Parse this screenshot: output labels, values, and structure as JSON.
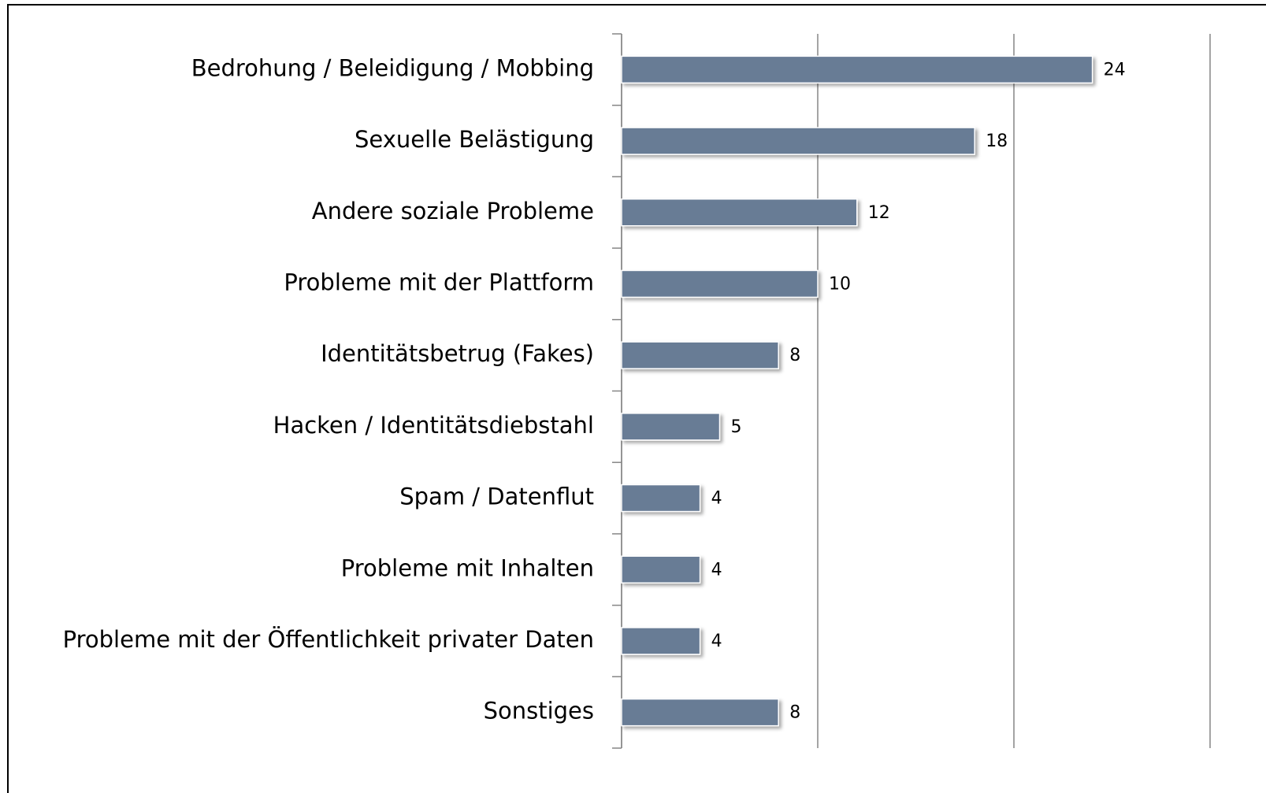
{
  "chart_data": {
    "type": "hbar",
    "categories": [
      "Bedrohung / Beleidigung / Mobbing",
      "Sexuelle Belästigung",
      "Andere soziale Probleme",
      "Probleme mit der Plattform",
      "Identitätsbetrug (Fakes)",
      "Hacken / Identitätsdiebstahl",
      "Spam / Datenflut",
      "Probleme mit Inhalten",
      "Probleme mit der Öffentlichkeit privater Daten",
      "Sonstiges"
    ],
    "values": [
      24,
      18,
      12,
      10,
      8,
      5,
      4,
      4,
      4,
      8
    ],
    "color": "#687b95",
    "xlim": [
      0,
      30
    ],
    "xticks": [
      0,
      10,
      20,
      30
    ],
    "grid": true
  }
}
